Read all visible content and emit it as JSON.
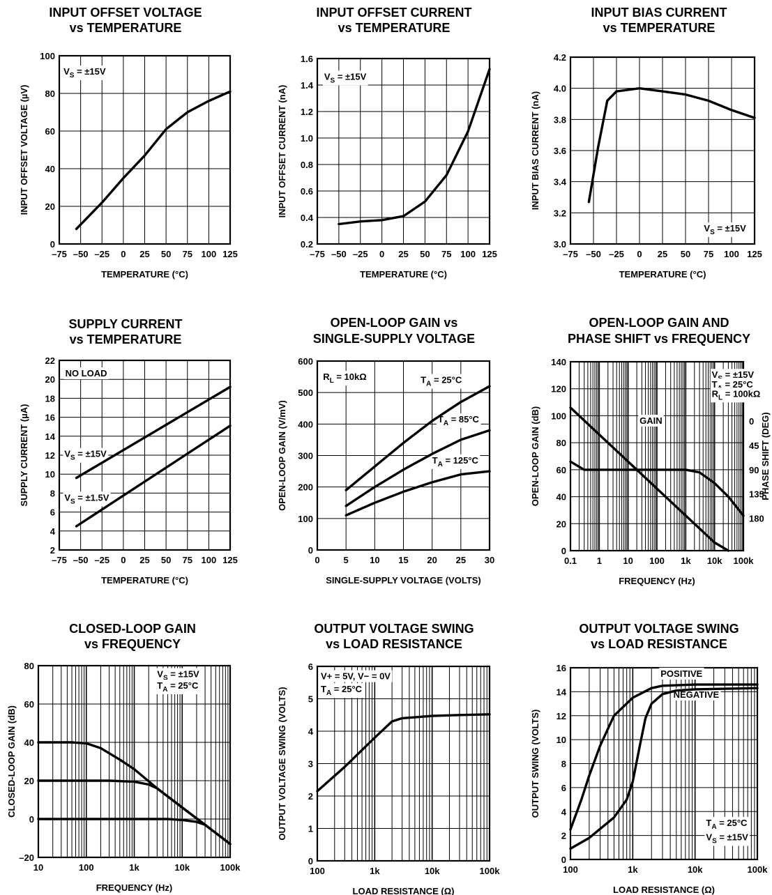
{
  "chart_data": [
    {
      "type": "line",
      "title": [
        "INPUT OFFSET VOLTAGE",
        "vs TEMPERATURE"
      ],
      "xlabel": "TEMPERATURE (°C)",
      "ylabel": "INPUT OFFSET VOLTAGE (µV)",
      "x_scale": "linear",
      "y_scale": "linear",
      "xlim": [
        -75,
        125
      ],
      "ylim": [
        0,
        100
      ],
      "x_ticks": [
        -75,
        -50,
        -25,
        0,
        25,
        50,
        75,
        100,
        125
      ],
      "x_tick_labels": [
        "–75",
        "–50",
        "–25",
        "0",
        "25",
        "50",
        "75",
        "100",
        "125"
      ],
      "y_ticks": [
        0,
        20,
        40,
        60,
        80,
        100
      ],
      "y_tick_labels": [
        "0",
        "20",
        "40",
        "60",
        "80",
        "100"
      ],
      "grid": true,
      "series": [
        {
          "x": [
            -55,
            -25,
            0,
            25,
            50,
            75,
            100,
            125
          ],
          "y": [
            8,
            22,
            35,
            47,
            61,
            70,
            76,
            81
          ]
        }
      ],
      "annotations": [
        {
          "text": "VS = ±15V",
          "x": -70,
          "y": 90
        }
      ]
    },
    {
      "type": "line",
      "title": [
        "INPUT OFFSET CURRENT",
        "vs TEMPERATURE"
      ],
      "xlabel": "TEMPERATURE (°C)",
      "ylabel": "INPUT OFFSET CURRENT (nA)",
      "x_scale": "linear",
      "y_scale": "linear",
      "xlim": [
        -75,
        125
      ],
      "ylim": [
        0.2,
        1.6
      ],
      "x_ticks": [
        -75,
        -50,
        -25,
        0,
        25,
        50,
        75,
        100,
        125
      ],
      "x_tick_labels": [
        "–75",
        "–50",
        "–25",
        "0",
        "25",
        "50",
        "75",
        "100",
        "125"
      ],
      "y_ticks": [
        0.2,
        0.4,
        0.6,
        0.8,
        1.0,
        1.2,
        1.4,
        1.6
      ],
      "y_tick_labels": [
        "0.2",
        "0.4",
        "0.6",
        "0.8",
        "1.0",
        "1.2",
        "1.4",
        "1.6"
      ],
      "grid": true,
      "series": [
        {
          "x": [
            -50,
            -25,
            0,
            25,
            50,
            75,
            100,
            125
          ],
          "y": [
            0.35,
            0.37,
            0.38,
            0.41,
            0.52,
            0.72,
            1.05,
            1.52
          ]
        }
      ],
      "annotations": [
        {
          "text": "VS = ±15V",
          "x": -67,
          "y": 1.44
        }
      ]
    },
    {
      "type": "line",
      "title": [
        "INPUT BIAS CURRENT",
        "vs TEMPERATURE"
      ],
      "xlabel": "TEMPERATURE (°C)",
      "ylabel": "INPUT BIAS CURRENT (nA)",
      "x_scale": "linear",
      "y_scale": "linear",
      "xlim": [
        -75,
        125
      ],
      "ylim": [
        3.0,
        4.2
      ],
      "x_ticks": [
        -75,
        -50,
        -25,
        0,
        25,
        50,
        75,
        100,
        125
      ],
      "x_tick_labels": [
        "–75",
        "–50",
        "–25",
        "0",
        "25",
        "50",
        "75",
        "100",
        "125"
      ],
      "y_ticks": [
        3.0,
        3.2,
        3.4,
        3.6,
        3.8,
        4.0,
        4.2
      ],
      "y_tick_labels": [
        "3.0",
        "3.2",
        "3.4",
        "3.6",
        "3.8",
        "4.0",
        "4.2"
      ],
      "grid": true,
      "series": [
        {
          "x": [
            -55,
            -45,
            -35,
            -25,
            0,
            25,
            50,
            75,
            100,
            125
          ],
          "y": [
            3.27,
            3.62,
            3.92,
            3.98,
            4.0,
            3.98,
            3.96,
            3.92,
            3.86,
            3.81
          ]
        }
      ],
      "annotations": [
        {
          "text": "VS = ±15V",
          "x": 70,
          "y": 3.08
        }
      ]
    },
    {
      "type": "line",
      "title": [
        "SUPPLY CURRENT",
        "vs TEMPERATURE"
      ],
      "xlabel": "TEMPERATURE (°C)",
      "ylabel": "SUPPLY CURRENT (µA)",
      "x_scale": "linear",
      "y_scale": "linear",
      "xlim": [
        -75,
        125
      ],
      "ylim": [
        2,
        22
      ],
      "x_ticks": [
        -75,
        -50,
        -25,
        0,
        25,
        50,
        75,
        100,
        125
      ],
      "x_tick_labels": [
        "–75",
        "–50",
        "–25",
        "0",
        "25",
        "50",
        "75",
        "100",
        "125"
      ],
      "y_ticks": [
        2,
        4,
        6,
        8,
        10,
        12,
        14,
        16,
        18,
        20,
        22
      ],
      "y_tick_labels": [
        "2",
        "4",
        "6",
        "8",
        "10",
        "12",
        "14",
        "16",
        "18",
        "20",
        "22"
      ],
      "grid": true,
      "series": [
        {
          "name": "VS = ±15V",
          "x": [
            -55,
            125
          ],
          "y": [
            9.6,
            19.2
          ]
        },
        {
          "name": "VS = ±1.5V",
          "x": [
            -55,
            125
          ],
          "y": [
            4.5,
            15.1
          ]
        }
      ],
      "annotations": [
        {
          "text": "NO LOAD",
          "x": -68,
          "y": 20.3
        },
        {
          "text": "VS = ±15V",
          "x": -69,
          "y": 11.8
        },
        {
          "text": "VS = ±1.5V",
          "x": -69,
          "y": 7.2
        }
      ]
    },
    {
      "type": "line",
      "title": [
        "OPEN-LOOP GAIN vs",
        "SINGLE-SUPPLY VOLTAGE"
      ],
      "xlabel": "SINGLE-SUPPLY VOLTAGE (VOLTS)",
      "ylabel": "OPEN-LOOP GAIN (V/mV)",
      "x_scale": "linear",
      "y_scale": "linear",
      "xlim": [
        0,
        30
      ],
      "ylim": [
        0,
        600
      ],
      "x_ticks": [
        0,
        5,
        10,
        15,
        20,
        25,
        30
      ],
      "x_tick_labels": [
        "0",
        "5",
        "10",
        "15",
        "20",
        "25",
        "30"
      ],
      "y_ticks": [
        0,
        100,
        200,
        300,
        400,
        500,
        600
      ],
      "y_tick_labels": [
        "0",
        "100",
        "200",
        "300",
        "400",
        "500",
        "600"
      ],
      "grid": true,
      "series": [
        {
          "name": "TA = 25°C",
          "x": [
            5,
            10,
            15,
            20,
            25,
            30
          ],
          "y": [
            190,
            265,
            340,
            410,
            470,
            520
          ]
        },
        {
          "name": "TA = 85°C",
          "x": [
            5,
            10,
            15,
            20,
            25,
            30
          ],
          "y": [
            140,
            200,
            255,
            305,
            350,
            380
          ]
        },
        {
          "name": "TA = 125°C",
          "x": [
            5,
            10,
            15,
            20,
            25,
            30
          ],
          "y": [
            110,
            150,
            185,
            215,
            240,
            250
          ]
        }
      ],
      "annotations": [
        {
          "text": "RL = 10kΩ",
          "x": 1,
          "y": 540
        },
        {
          "text": "TA = 25°C",
          "x": 18,
          "y": 530
        },
        {
          "text": "TA = 85°C",
          "x": 21,
          "y": 405
        },
        {
          "text": "TA = 125°C",
          "x": 20,
          "y": 275
        }
      ]
    },
    {
      "type": "line",
      "title": [
        "OPEN-LOOP GAIN AND",
        "PHASE SHIFT vs FREQUENCY"
      ],
      "xlabel": "FREQUENCY (Hz)",
      "ylabel": "OPEN-LOOP GAIN (dB)",
      "y2label": "PHASE SHIFT (DEG)",
      "x_scale": "log",
      "y_scale": "linear",
      "xlim": [
        0.1,
        100000
      ],
      "ylim": [
        0,
        140
      ],
      "x_ticks": [
        0.1,
        1,
        10,
        100,
        1000,
        10000,
        100000
      ],
      "x_tick_labels": [
        "0.1",
        "1",
        "10",
        "100",
        "1k",
        "10k",
        "100k"
      ],
      "y_ticks": [
        0,
        20,
        40,
        60,
        80,
        100,
        120,
        140
      ],
      "y_tick_labels": [
        "0",
        "20",
        "40",
        "60",
        "80",
        "100",
        "120",
        "140"
      ],
      "y2_ticks": [
        0,
        45,
        90,
        135,
        180
      ],
      "y2_tick_labels": [
        "0",
        "45",
        "90",
        "135",
        "180"
      ],
      "y2_map": {
        "deg_at_top_line": 0,
        "gain_db_at_0deg": 96,
        "db_per_45deg": 18
      },
      "grid": true,
      "series": [
        {
          "name": "GAIN",
          "x": [
            0.1,
            1,
            10,
            100,
            1000,
            10000,
            30000
          ],
          "y": [
            106,
            86,
            66,
            46,
            26,
            6,
            0
          ]
        },
        {
          "name": "PHASE",
          "axis": "y2",
          "x": [
            0.1,
            0.3,
            1,
            10,
            100,
            1000,
            3000,
            10000,
            30000,
            100000
          ],
          "y": [
            75,
            90,
            90,
            90,
            90,
            90,
            95,
            115,
            140,
            175
          ]
        }
      ],
      "annotations": [
        {
          "text": "VS = ±15V",
          "x": 8000,
          "y": 128
        },
        {
          "text": "TA = 25°C",
          "x": 8000,
          "y": 121
        },
        {
          "text": "RL = 100kΩ",
          "x": 8000,
          "y": 114
        },
        {
          "text": "GAIN",
          "x": 25,
          "y": 94
        }
      ]
    },
    {
      "type": "line",
      "title": [
        "CLOSED-LOOP GAIN",
        "vs FREQUENCY"
      ],
      "xlabel": "FREQUENCY (Hz)",
      "ylabel": "CLOSED-LOOP GAIN (dB)",
      "x_scale": "log",
      "y_scale": "linear",
      "xlim": [
        10,
        100000
      ],
      "ylim": [
        -20,
        80
      ],
      "x_ticks": [
        10,
        100,
        1000,
        10000,
        100000
      ],
      "x_tick_labels": [
        "10",
        "100",
        "1k",
        "10k",
        "100k"
      ],
      "y_ticks": [
        -20,
        0,
        20,
        40,
        60,
        80
      ],
      "y_tick_labels": [
        "–20",
        "0",
        "20",
        "40",
        "60",
        "80"
      ],
      "grid": true,
      "series": [
        {
          "x": [
            10,
            50,
            100,
            200,
            500,
            1000,
            3000,
            10000,
            30000,
            100000
          ],
          "y": [
            40,
            40,
            39.5,
            37,
            31,
            26,
            16,
            6,
            -3,
            -13
          ]
        },
        {
          "x": [
            10,
            300,
            1000,
            2000,
            3000,
            10000,
            30000,
            100000
          ],
          "y": [
            20,
            20,
            19.5,
            18,
            16,
            6,
            -3,
            -13
          ]
        },
        {
          "x": [
            10,
            1000,
            5000,
            10000,
            20000,
            30000,
            100000
          ],
          "y": [
            0,
            0,
            0,
            -0.5,
            -1.5,
            -3,
            -13
          ]
        }
      ],
      "annotations": [
        {
          "text": "VS = ±15V",
          "x": 3000,
          "y": 74
        },
        {
          "text": "TA = 25°C",
          "x": 3000,
          "y": 68
        }
      ]
    },
    {
      "type": "line",
      "title": [
        "OUTPUT VOLTAGE SWING",
        "vs LOAD RESISTANCE"
      ],
      "xlabel": "LOAD RESISTANCE (Ω)",
      "ylabel": "OUTPUT VOLTAGE SWING (VOLTS)",
      "x_scale": "log",
      "y_scale": "linear",
      "xlim": [
        100,
        100000
      ],
      "ylim": [
        0,
        6
      ],
      "x_ticks": [
        100,
        1000,
        10000,
        100000
      ],
      "x_tick_labels": [
        "100",
        "1k",
        "10k",
        "100k"
      ],
      "y_ticks": [
        0,
        1,
        2,
        3,
        4,
        5,
        6
      ],
      "y_tick_labels": [
        "0",
        "1",
        "2",
        "3",
        "4",
        "5",
        "6"
      ],
      "grid": true,
      "series": [
        {
          "x": [
            100,
            300,
            1000,
            2000,
            3000,
            10000,
            30000,
            100000
          ],
          "y": [
            2.15,
            2.9,
            3.8,
            4.3,
            4.4,
            4.47,
            4.5,
            4.52
          ]
        }
      ],
      "annotations": [
        {
          "text": "V+ = 5V, V− = 0V",
          "x": 115,
          "y": 5.6
        },
        {
          "text": "TA = 25°C",
          "x": 115,
          "y": 5.2
        }
      ]
    },
    {
      "type": "line",
      "title": [
        "OUTPUT VOLTAGE SWING",
        "vs LOAD RESISTANCE"
      ],
      "xlabel": "LOAD RESISTANCE (Ω)",
      "ylabel": "OUTPUT SWING (VOLTS)",
      "x_scale": "log",
      "y_scale": "linear",
      "xlim": [
        100,
        100000
      ],
      "ylim": [
        0,
        16
      ],
      "x_ticks": [
        100,
        1000,
        10000,
        100000
      ],
      "x_tick_labels": [
        "100",
        "1k",
        "10k",
        "100k"
      ],
      "y_ticks": [
        0,
        2,
        4,
        6,
        8,
        10,
        12,
        14,
        16
      ],
      "y_tick_labels": [
        "0",
        "2",
        "4",
        "6",
        "8",
        "10",
        "12",
        "14",
        "16"
      ],
      "grid": true,
      "series": [
        {
          "name": "POSITIVE",
          "x": [
            100,
            150,
            200,
            300,
            500,
            1000,
            2000,
            3000,
            10000,
            100000
          ],
          "y": [
            2.5,
            5,
            7,
            9.5,
            12,
            13.5,
            14.3,
            14.5,
            14.6,
            14.6
          ]
        },
        {
          "name": "NEGATIVE",
          "x": [
            100,
            200,
            500,
            800,
            1000,
            1300,
            1600,
            2000,
            3000,
            5000,
            10000,
            100000
          ],
          "y": [
            0.9,
            1.8,
            3.5,
            5,
            6.5,
            9.5,
            11.8,
            13,
            13.8,
            14.1,
            14.2,
            14.3
          ]
        }
      ],
      "annotations": [
        {
          "text": "POSITIVE",
          "x": 2800,
          "y": 15.25
        },
        {
          "text": "NEGATIVE",
          "x": 4500,
          "y": 13.5
        },
        {
          "text": "TA = 25°C",
          "x": 15000,
          "y": 2.8
        },
        {
          "text": "VS = ±15V",
          "x": 15000,
          "y": 1.6
        }
      ]
    }
  ]
}
